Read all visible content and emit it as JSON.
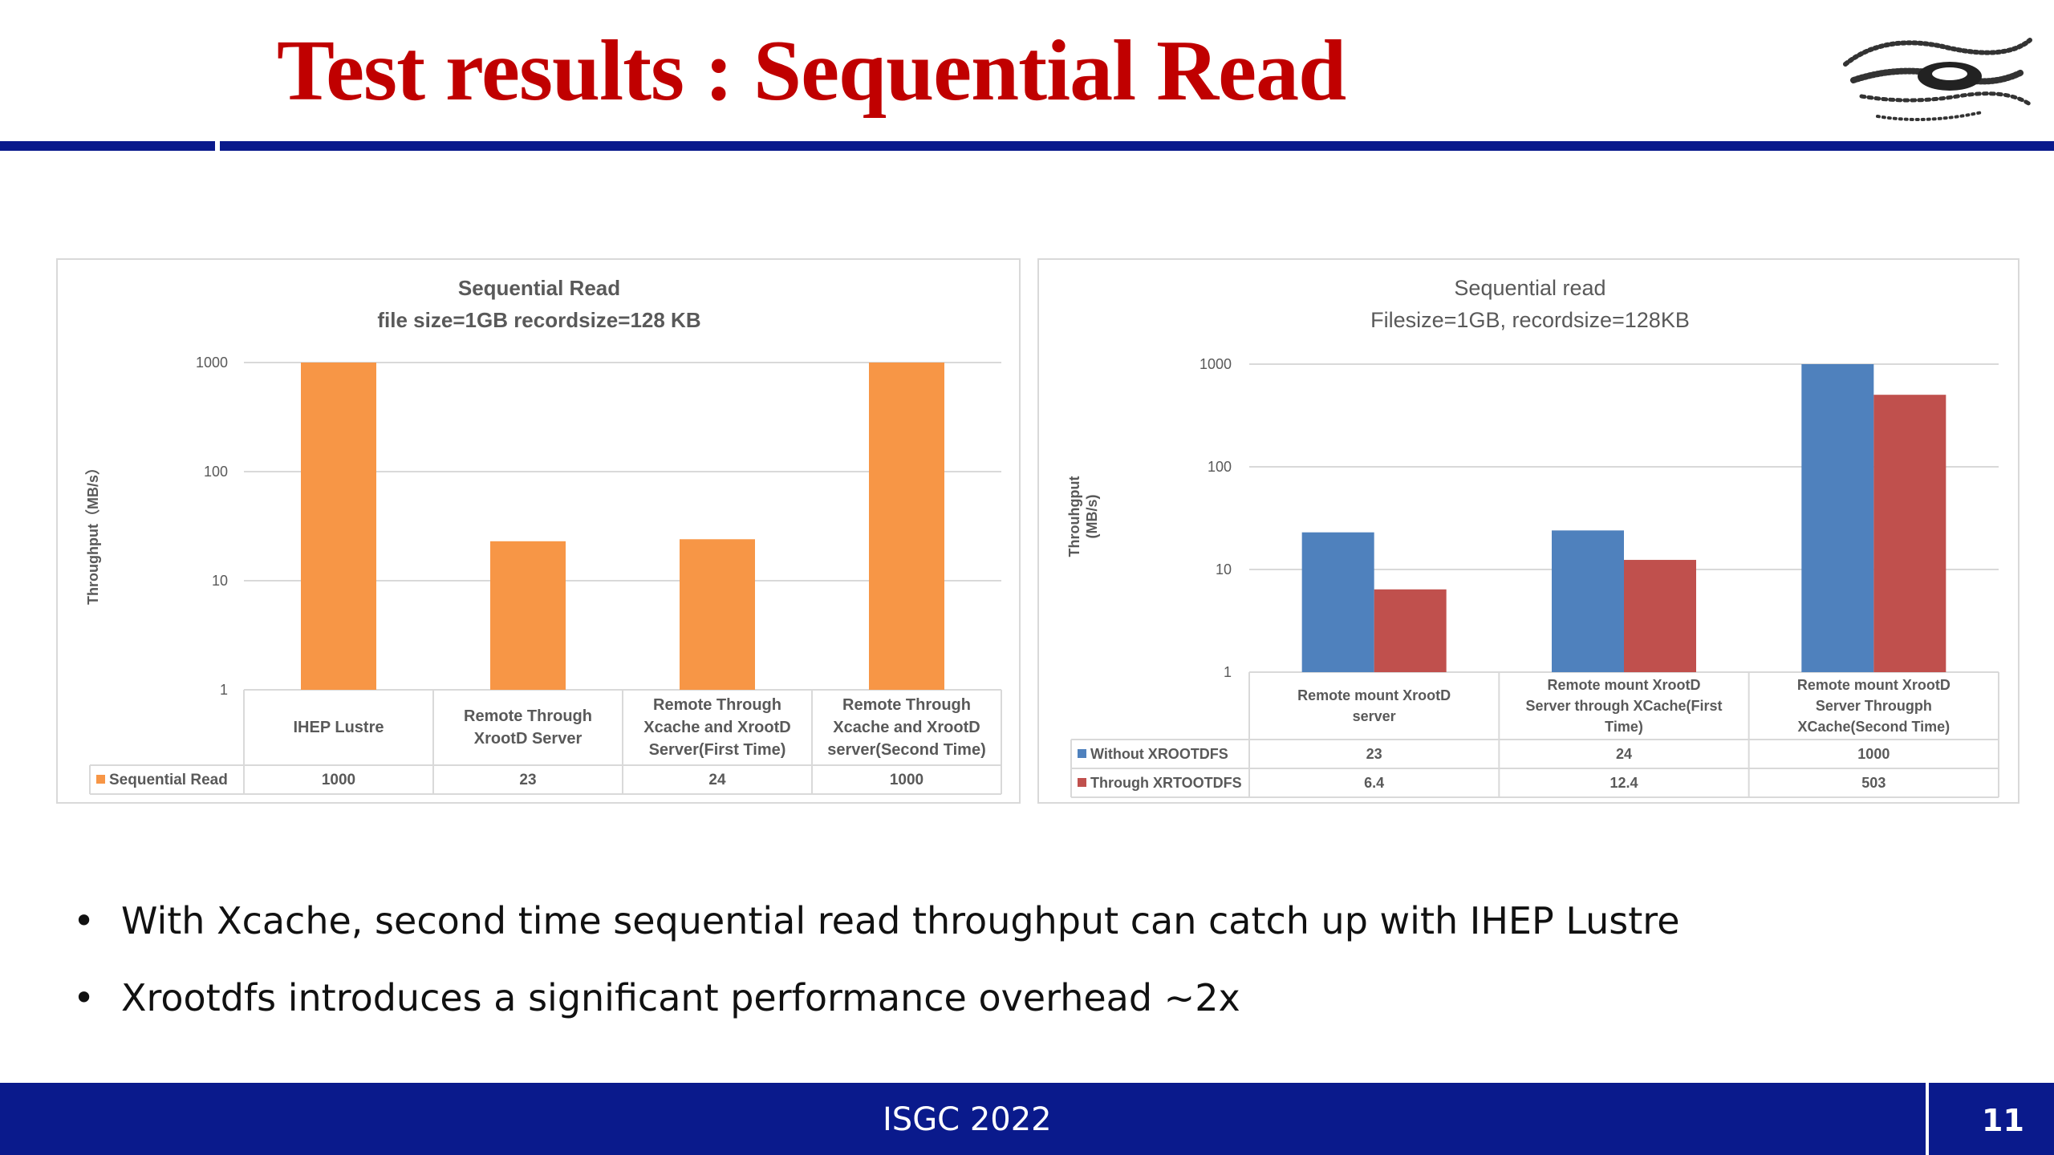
{
  "slide": {
    "title": "Test results : Sequential Read",
    "bullets": [
      "With Xcache, second time sequential read throughput can catch up with IHEP Lustre",
      "Xrootdfs introduces a significant performance overhead ~2x"
    ],
    "bullet_symbol": "•",
    "footer": "ISGC 2022",
    "page_number": "11",
    "colors": {
      "title": "#c00000",
      "band": "#0a1a8c"
    }
  },
  "chart_data": [
    {
      "type": "bar",
      "title": "Sequential Read",
      "subtitle": "file size=1GB recordsize=128 KB",
      "ylabel": "Throughput（MB/s）",
      "xlabel": "",
      "yscale": "log",
      "ylim": [
        1,
        1000
      ],
      "yticks": [
        "1",
        "10",
        "100",
        "1000"
      ],
      "categories": [
        [
          "IHEP Lustre"
        ],
        [
          "Remote Through",
          "XrootD Server"
        ],
        [
          "Remote Through",
          "Xcache and XrootD",
          "Server(First Time)"
        ],
        [
          "Remote Through",
          "Xcache and XrootD",
          "server(Second Time)"
        ]
      ],
      "series": [
        {
          "name": "Sequential Read",
          "color": "#f79646",
          "values": [
            1000,
            23,
            24,
            1000
          ],
          "labels": [
            "1000",
            "23",
            "24",
            "1000"
          ]
        }
      ],
      "grid": true,
      "legend": "data-table"
    },
    {
      "type": "bar",
      "title": "Sequential  read",
      "subtitle": "Filesize=1GB, recordsize=128KB",
      "ylabel": [
        "Throuhgput",
        "(MB/s)"
      ],
      "xlabel": "",
      "yscale": "log",
      "ylim": [
        1,
        1000
      ],
      "yticks": [
        "1",
        "10",
        "100",
        "1000"
      ],
      "categories": [
        [
          "Remote mount XrootD",
          "server"
        ],
        [
          "Remote mount XrootD",
          "Server through XCache(First",
          "Time)"
        ],
        [
          "Remote mount XrootD",
          "Server Througph",
          "XCache(Second Time)"
        ]
      ],
      "series": [
        {
          "name": "Without XROOTDFS",
          "color": "#4f81bd",
          "values": [
            23,
            24,
            1000
          ],
          "labels": [
            "23",
            "24",
            "1000"
          ]
        },
        {
          "name": "Through XRTOOTDFS",
          "color": "#c0504d",
          "values": [
            6.4,
            12.4,
            503
          ],
          "labels": [
            "6.4",
            "12.4",
            "503"
          ]
        }
      ],
      "grid": true,
      "legend": "data-table"
    }
  ]
}
